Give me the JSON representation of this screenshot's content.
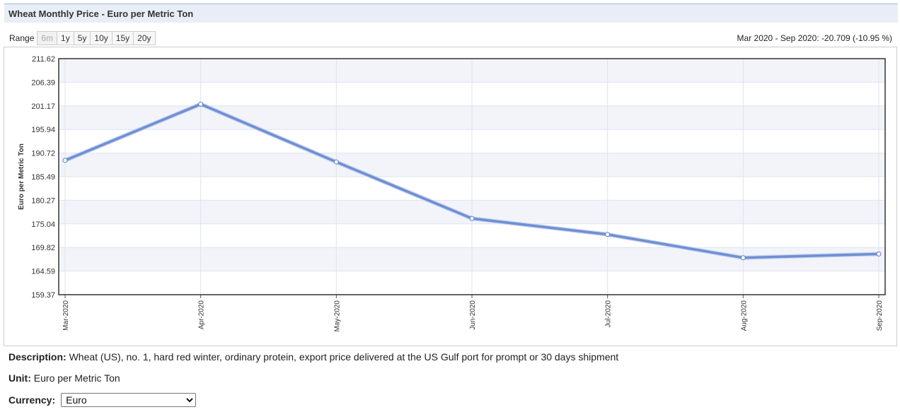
{
  "header": {
    "title": "Wheat Monthly Price - Euro per Metric Ton"
  },
  "range": {
    "label": "Range",
    "buttons": [
      {
        "label": "6m",
        "disabled": true
      },
      {
        "label": "1y"
      },
      {
        "label": "5y"
      },
      {
        "label": "10y"
      },
      {
        "label": "15y"
      },
      {
        "label": "20y"
      }
    ]
  },
  "change_summary": "Mar 2020 - Sep 2020: -20.709 (-10.95 %)",
  "description": {
    "label": "Description:",
    "text": "Wheat (US), no. 1, hard red winter, ordinary protein, export price delivered at the US Gulf port for prompt or 30 days shipment"
  },
  "unit": {
    "label": "Unit:",
    "text": "Euro per Metric Ton"
  },
  "currency": {
    "label": "Currency:",
    "selected": "Euro"
  },
  "colors": {
    "line": "#6e8fd4",
    "band": "#f2f4fa",
    "grid": "#dde3ef",
    "axis": "#333333"
  },
  "chart_data": {
    "type": "line",
    "xlabel": "",
    "ylabel": "Euro per Metric Ton",
    "categories": [
      "Mar-2020",
      "Apr-2020",
      "May-2020",
      "Jun-2020",
      "Jul-2020",
      "Aug-2020",
      "Sep-2020"
    ],
    "series": [
      {
        "values": [
          189.1,
          201.55,
          188.75,
          176.25,
          172.7,
          167.55,
          168.39
        ]
      }
    ],
    "ylim": [
      159.37,
      211.62
    ],
    "yticks": [
      "159.37",
      "164.59",
      "169.82",
      "175.04",
      "180.27",
      "185.49",
      "190.72",
      "195.94",
      "201.17",
      "206.39",
      "211.62"
    ],
    "grid": true,
    "legend": "none"
  }
}
